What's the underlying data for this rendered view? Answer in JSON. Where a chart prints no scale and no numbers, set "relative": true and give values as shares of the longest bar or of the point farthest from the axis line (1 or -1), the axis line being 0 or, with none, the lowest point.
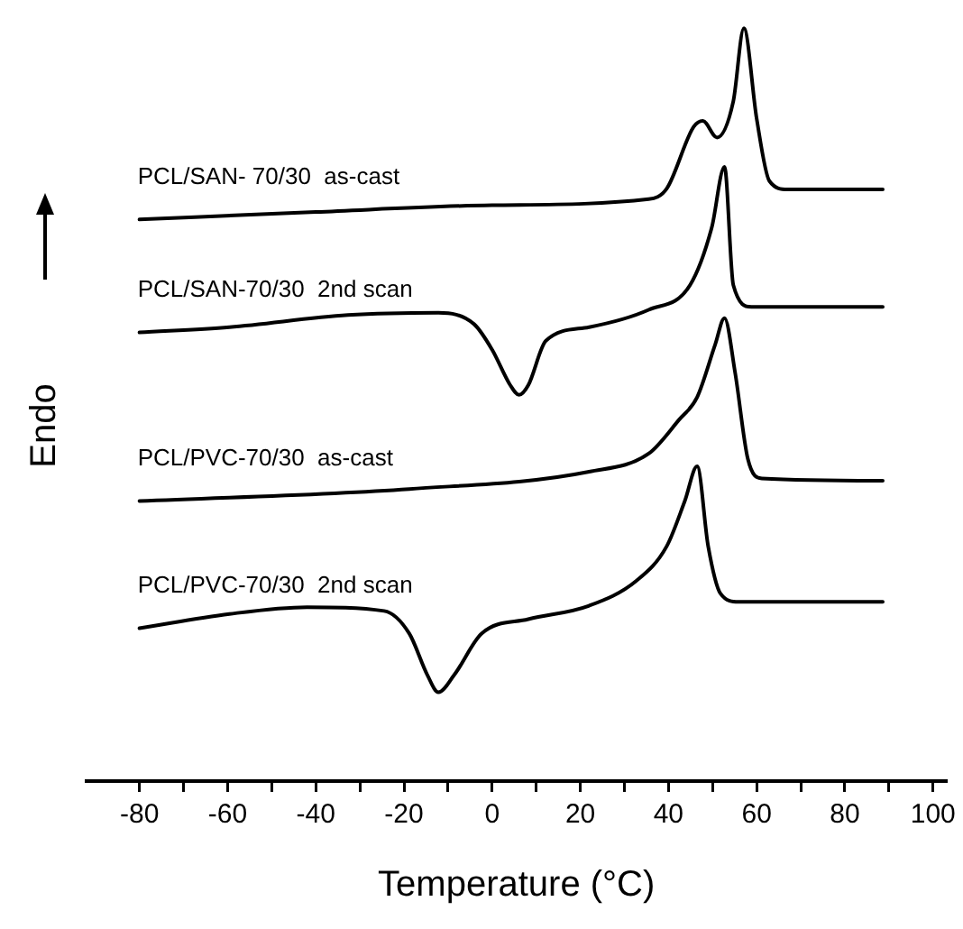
{
  "chart_data": {
    "type": "line",
    "relative": true,
    "xlabel": "Temperature (°C)",
    "ylabel": "Endo",
    "xlim": [
      -92,
      103
    ],
    "xticks": [
      -80,
      {
        "value": -70,
        "label": null
      },
      -60,
      {
        "value": -50,
        "label": null
      },
      -40,
      {
        "value": -30,
        "label": null
      },
      -20,
      {
        "value": -10,
        "label": null
      },
      0,
      {
        "value": 10,
        "label": null
      },
      20,
      {
        "value": 30,
        "label": null
      },
      40,
      {
        "value": 50,
        "label": null
      },
      60,
      {
        "value": 70,
        "label": null
      },
      80,
      {
        "value": 90,
        "label": null
      },
      100
    ],
    "grid": false,
    "legend": false,
    "marker": "none",
    "line_style": "solid",
    "series": [
      {
        "name": "PCL/SAN- 70/30  as-cast",
        "color": "#000000",
        "x": [
          -80,
          -40,
          0,
          35.5,
          39.6,
          45.7,
          47.8,
          51,
          54.7,
          57.1,
          60,
          62.9,
          67,
          88.6
        ],
        "values": [
          0.746,
          0.756,
          0.765,
          0.773,
          0.787,
          0.869,
          0.877,
          0.855,
          0.903,
          1.0,
          0.88,
          0.797,
          0.786,
          0.786
        ]
      },
      {
        "name": "PCL/SAN-70/30  2nd scan",
        "color": "#000000",
        "x": [
          -80,
          -59.6,
          -32.7,
          -12.2,
          -4.1,
          0,
          4.1,
          6.1,
          8.2,
          12.2,
          22,
          35.5,
          44.9,
          49.8,
          52.7,
          54.7,
          58.8,
          88.6
        ],
        "values": [
          0.596,
          0.603,
          0.619,
          0.622,
          0.607,
          0.573,
          0.526,
          0.513,
          0.526,
          0.585,
          0.603,
          0.626,
          0.659,
          0.735,
          0.816,
          0.659,
          0.63,
          0.63
        ]
      },
      {
        "name": "PCL/PVC-70/30  as-cast",
        "color": "#000000",
        "x": [
          -80,
          -18.8,
          22,
          35.5,
          42.4,
          46.5,
          50.6,
          52.7,
          55.1,
          58,
          61.2,
          88.6
        ],
        "values": [
          0.372,
          0.388,
          0.411,
          0.435,
          0.48,
          0.51,
          0.58,
          0.615,
          0.543,
          0.428,
          0.402,
          0.399
        ]
      },
      {
        "name": "PCL/PVC-70/30  2nd scan",
        "color": "#000000",
        "x": [
          -80,
          -59.6,
          -42,
          -24.5,
          -18.8,
          -14.7,
          -12.2,
          -8.6,
          -2.4,
          8.2,
          22,
          32.7,
          39.6,
          43.7,
          46.5,
          49,
          51.8,
          55.9,
          88.6
        ],
        "values": [
          0.203,
          0.222,
          0.231,
          0.226,
          0.196,
          0.141,
          0.118,
          0.141,
          0.196,
          0.215,
          0.233,
          0.266,
          0.312,
          0.372,
          0.418,
          0.312,
          0.249,
          0.238,
          0.238
        ]
      }
    ]
  }
}
